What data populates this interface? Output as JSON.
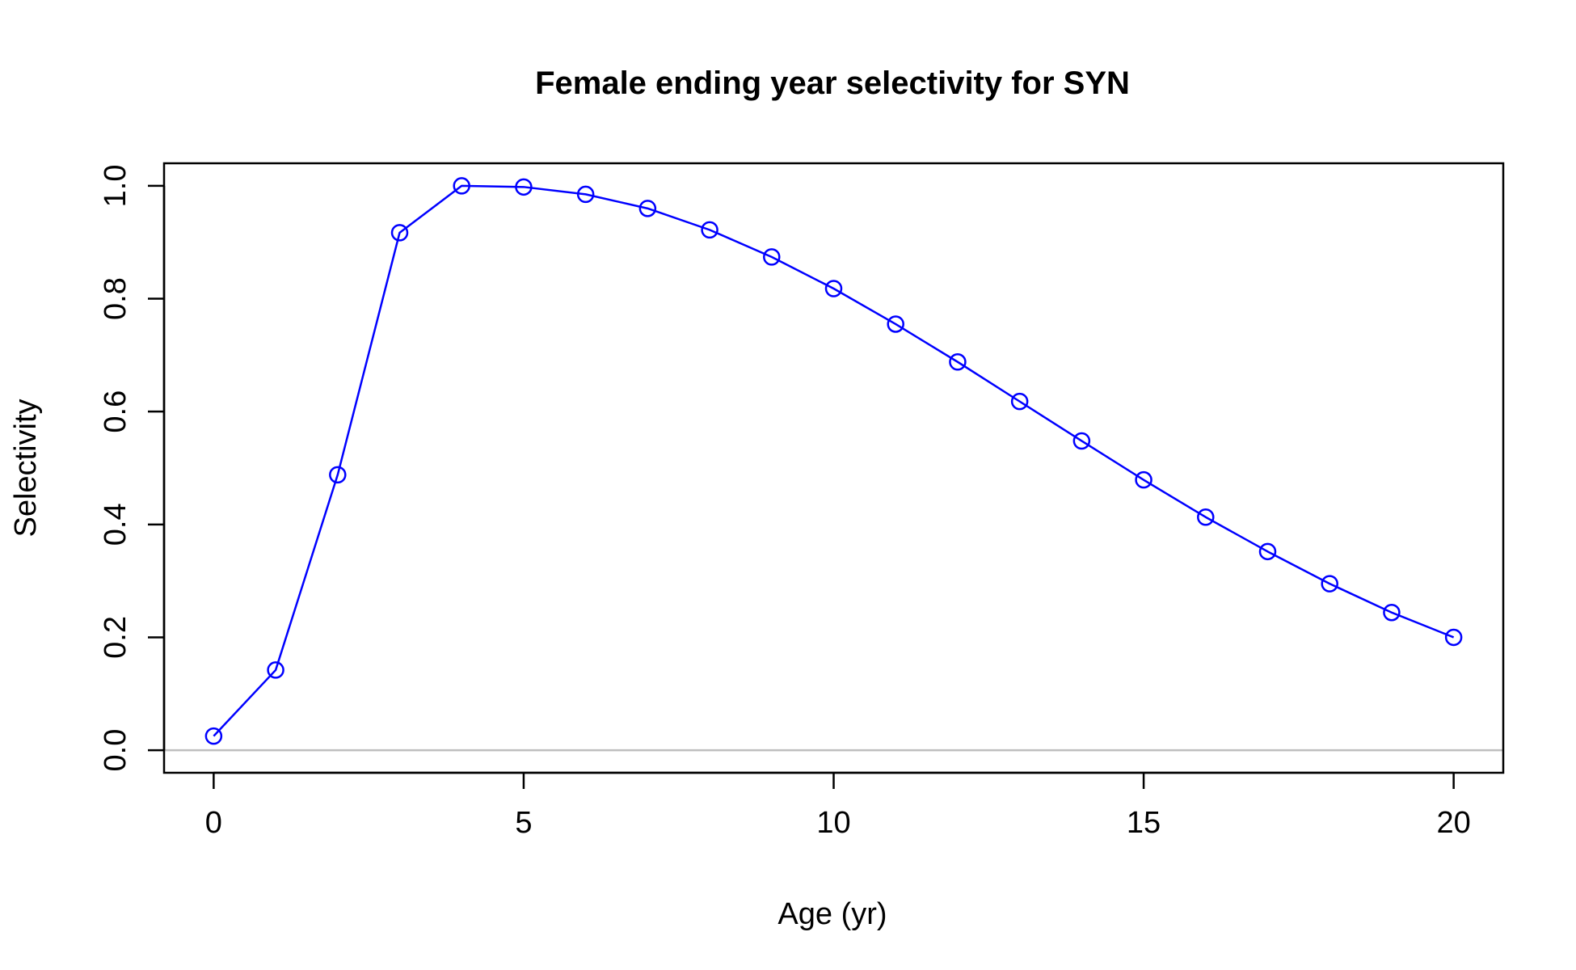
{
  "chart_data": {
    "type": "line",
    "title": "Female ending year selectivity for SYN",
    "xlabel": "Age (yr)",
    "ylabel": "Selectivity",
    "xlim": [
      -0.8,
      20.8
    ],
    "ylim": [
      -0.04,
      1.04
    ],
    "x_ticks": [
      0,
      5,
      10,
      15,
      20
    ],
    "x_tick_labels": [
      "0",
      "5",
      "10",
      "15",
      "20"
    ],
    "y_ticks": [
      0.0,
      0.2,
      0.4,
      0.6,
      0.8,
      1.0
    ],
    "y_tick_labels": [
      "0.0",
      "0.2",
      "0.4",
      "0.6",
      "0.8",
      "1.0"
    ],
    "grid": false,
    "reference_line": {
      "y": 0,
      "color": "#bebebe"
    },
    "series": [
      {
        "color": "#0000ff",
        "marker": "open-circle",
        "x": [
          0,
          1,
          2,
          3,
          4,
          5,
          6,
          7,
          8,
          9,
          10,
          11,
          12,
          13,
          14,
          15,
          16,
          17,
          18,
          19,
          20
        ],
        "y": [
          0.025,
          0.142,
          0.488,
          0.917,
          1.0,
          0.998,
          0.985,
          0.96,
          0.922,
          0.874,
          0.818,
          0.755,
          0.688,
          0.618,
          0.548,
          0.479,
          0.413,
          0.352,
          0.295,
          0.244,
          0.2
        ]
      }
    ]
  }
}
